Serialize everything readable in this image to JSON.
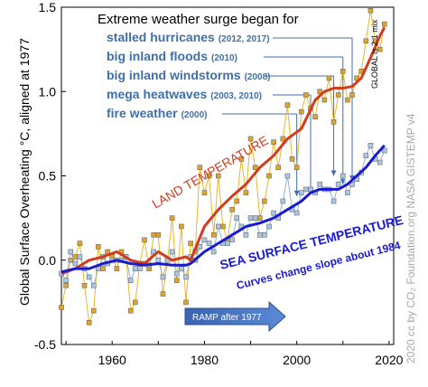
{
  "chart_data": {
    "type": "line",
    "ylabel": "Global Surface Overheating °C, aligned at 1977",
    "xlim": [
      1949,
      2021
    ],
    "ylim": [
      -0.5,
      1.5
    ],
    "xticks": [
      1960,
      1980,
      2000,
      2020
    ],
    "yticks": [
      -0.5,
      0.0,
      0.5,
      1.0,
      1.5
    ],
    "ytick_labels": [
      "-0.5",
      "0.0",
      "0.5",
      "1.0",
      "1.5"
    ],
    "heading": "Extreme weather surge began for",
    "events": [
      {
        "label": "stalled hurricanes",
        "years": "(2012, 2017)",
        "year": 2012
      },
      {
        "label": "big inland floods",
        "years": "(2010)",
        "year": 2010
      },
      {
        "label": "big inland windstorms",
        "years": "(2008)",
        "year": 2008
      },
      {
        "label": "mega heatwaves",
        "years": "(2003, 2010)",
        "year": 2003
      },
      {
        "label": "fire weather",
        "years": "(2000)",
        "year": 2000
      }
    ],
    "land_label": "LAND TEMPERATURE",
    "sea_label": "SEA SURFACE TEMPERATURE",
    "sea_sublabel": "Curves change slope about 1984",
    "global_note": "GLOBAL is 2:1 mix",
    "ramp_label": "RAMP after 1977",
    "credit_text": "2020 cc by  CO₂ Foundation.org   NASA GISTEMP v4",
    "colors": {
      "land_points": "#e6b829",
      "land_smooth": "#d23c1c",
      "sea_points": "#a9c8e6",
      "sea_smooth": "#1a1ad0",
      "events": "#3f6fa8",
      "ramp": "#4472c4"
    },
    "series": [
      {
        "name": "LAND TEMPERATURE",
        "x": [
          1949,
          1950,
          1951,
          1952,
          1953,
          1954,
          1955,
          1956,
          1957,
          1958,
          1959,
          1960,
          1961,
          1962,
          1963,
          1964,
          1965,
          1966,
          1967,
          1968,
          1969,
          1970,
          1971,
          1972,
          1973,
          1974,
          1975,
          1976,
          1977,
          1978,
          1979,
          1980,
          1981,
          1982,
          1983,
          1984,
          1985,
          1986,
          1987,
          1988,
          1989,
          1990,
          1991,
          1992,
          1993,
          1994,
          1995,
          1996,
          1997,
          1998,
          1999,
          2000,
          2001,
          2002,
          2003,
          2004,
          2005,
          2006,
          2007,
          2008,
          2009,
          2010,
          2011,
          2012,
          2013,
          2014,
          2015,
          2016,
          2017,
          2018,
          2019
        ],
        "values": [
          -0.28,
          -0.15,
          0.0,
          0.02,
          0.1,
          -0.15,
          -0.37,
          -0.3,
          0.08,
          -0.05,
          0.05,
          0.02,
          -0.05,
          0.05,
          0.02,
          -0.3,
          -0.25,
          -0.02,
          0.12,
          -0.05,
          0.15,
          0.15,
          -0.2,
          0.0,
          0.25,
          -0.12,
          0.2,
          -0.25,
          0.1,
          0.05,
          0.55,
          0.4,
          0.5,
          0.15,
          0.5,
          0.2,
          0.12,
          0.3,
          0.35,
          0.6,
          0.4,
          0.72,
          0.55,
          0.25,
          0.35,
          0.5,
          0.7,
          0.55,
          0.72,
          0.92,
          0.6,
          0.55,
          0.88,
          0.98,
          0.9,
          0.85,
          1.0,
          0.95,
          1.08,
          0.82,
          0.98,
          1.12,
          0.95,
          0.98,
          1.08,
          1.12,
          1.3,
          1.48,
          1.3,
          1.25,
          1.4
        ]
      },
      {
        "name": "LAND TEMPERATURE smooth",
        "x": [
          1949,
          1952,
          1955,
          1958,
          1961,
          1964,
          1967,
          1970,
          1973,
          1976,
          1977,
          1980,
          1983,
          1986,
          1989,
          1992,
          1995,
          1998,
          2001,
          2004,
          2006,
          2008,
          2010,
          2012,
          2014,
          2016,
          2018,
          2019
        ],
        "values": [
          -0.08,
          -0.05,
          0.0,
          0.02,
          0.05,
          0.0,
          -0.02,
          0.05,
          0.0,
          0.02,
          0.0,
          0.2,
          0.3,
          0.38,
          0.45,
          0.55,
          0.62,
          0.72,
          0.78,
          0.95,
          1.0,
          1.02,
          1.02,
          1.03,
          1.08,
          1.2,
          1.33,
          1.38
        ]
      },
      {
        "name": "SEA SURFACE TEMPERATURE",
        "x": [
          1949,
          1950,
          1951,
          1952,
          1953,
          1954,
          1955,
          1956,
          1957,
          1958,
          1959,
          1960,
          1961,
          1962,
          1963,
          1964,
          1965,
          1966,
          1967,
          1968,
          1969,
          1970,
          1971,
          1972,
          1973,
          1974,
          1975,
          1976,
          1977,
          1978,
          1979,
          1980,
          1981,
          1982,
          1983,
          1984,
          1985,
          1986,
          1987,
          1988,
          1989,
          1990,
          1991,
          1992,
          1993,
          1994,
          1995,
          1996,
          1997,
          1998,
          1999,
          2000,
          2001,
          2002,
          2003,
          2004,
          2005,
          2006,
          2007,
          2008,
          2009,
          2010,
          2011,
          2012,
          2013,
          2014,
          2015,
          2016,
          2017,
          2018,
          2019
        ],
        "values": [
          -0.08,
          -0.12,
          0.05,
          -0.02,
          0.02,
          -0.05,
          -0.1,
          -0.15,
          -0.05,
          0.02,
          -0.02,
          0.0,
          0.0,
          0.0,
          0.02,
          -0.12,
          -0.05,
          -0.05,
          -0.02,
          -0.03,
          0.05,
          0.0,
          -0.1,
          0.0,
          0.05,
          -0.08,
          -0.05,
          -0.1,
          0.02,
          0.0,
          0.08,
          0.12,
          0.1,
          0.05,
          0.2,
          0.1,
          0.1,
          0.12,
          0.25,
          0.2,
          0.15,
          0.25,
          0.25,
          0.15,
          0.15,
          0.2,
          0.28,
          0.25,
          0.35,
          0.5,
          0.3,
          0.28,
          0.4,
          0.42,
          0.42,
          0.4,
          0.45,
          0.42,
          0.42,
          0.35,
          0.45,
          0.5,
          0.4,
          0.45,
          0.48,
          0.52,
          0.62,
          0.68,
          0.6,
          0.58,
          0.65
        ]
      },
      {
        "name": "SEA SURFACE TEMPERATURE smooth",
        "x": [
          1949,
          1952,
          1955,
          1958,
          1961,
          1964,
          1967,
          1970,
          1973,
          1976,
          1977,
          1980,
          1983,
          1986,
          1989,
          1992,
          1995,
          1998,
          2001,
          2003,
          2005,
          2007,
          2009,
          2011,
          2013,
          2015,
          2017,
          2019
        ],
        "values": [
          -0.07,
          -0.05,
          -0.05,
          -0.02,
          0.0,
          -0.02,
          -0.03,
          -0.02,
          -0.03,
          -0.03,
          -0.02,
          0.05,
          0.1,
          0.15,
          0.2,
          0.22,
          0.25,
          0.3,
          0.35,
          0.4,
          0.42,
          0.42,
          0.42,
          0.45,
          0.5,
          0.55,
          0.62,
          0.68
        ]
      }
    ]
  }
}
